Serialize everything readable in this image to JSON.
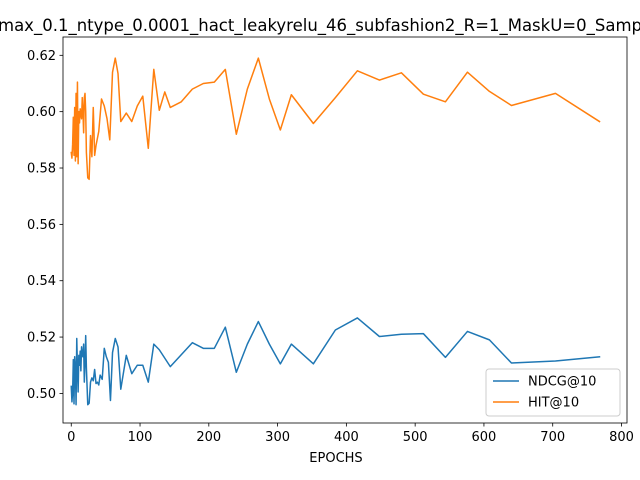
{
  "chart_data": {
    "type": "line",
    "title": "max_0.1_ntype_0.0001_hact_leakyrelu_46_subfashion2_R=1_MaskU=0_Samp",
    "xlabel": "EPOCHS",
    "ylabel": "",
    "xlim": [
      -12,
      808
    ],
    "ylim": [
      0.4895,
      0.6265
    ],
    "xticks": [
      0,
      100,
      200,
      300,
      400,
      500,
      600,
      700,
      800
    ],
    "yticks": [
      0.5,
      0.52,
      0.54,
      0.56,
      0.58,
      0.6,
      0.62
    ],
    "ytick_labels": [
      "0.50",
      "0.52",
      "0.54",
      "0.56",
      "0.58",
      "0.60",
      "0.62"
    ],
    "grid": false,
    "legend_position": "lower right",
    "series": [
      {
        "name": "NDCG@10",
        "color": "#1f77b4",
        "points": [
          [
            0,
            0.5025
          ],
          [
            1,
            0.497
          ],
          [
            2,
            0.5005
          ],
          [
            3,
            0.512
          ],
          [
            4,
            0.4963
          ],
          [
            5,
            0.513
          ],
          [
            6,
            0.509
          ],
          [
            7,
            0.496
          ],
          [
            8,
            0.5195
          ],
          [
            9,
            0.509
          ],
          [
            10,
            0.5005
          ],
          [
            11,
            0.5135
          ],
          [
            12,
            0.51
          ],
          [
            13,
            0.515
          ],
          [
            14,
            0.508
          ],
          [
            15,
            0.5165
          ],
          [
            16,
            0.5135
          ],
          [
            17,
            0.513
          ],
          [
            18,
            0.5175
          ],
          [
            19,
            0.504
          ],
          [
            20,
            0.511
          ],
          [
            21,
            0.5205
          ],
          [
            22,
            0.509
          ],
          [
            24,
            0.496
          ],
          [
            26,
            0.4965
          ],
          [
            28,
            0.504
          ],
          [
            30,
            0.5055
          ],
          [
            32,
            0.5045
          ],
          [
            34,
            0.5085
          ],
          [
            36,
            0.5035
          ],
          [
            38,
            0.504
          ],
          [
            40,
            0.503
          ],
          [
            42,
            0.5065
          ],
          [
            45,
            0.505
          ],
          [
            48,
            0.516
          ],
          [
            51,
            0.513
          ],
          [
            54,
            0.511
          ],
          [
            57,
            0.4975
          ],
          [
            60,
            0.5145
          ],
          [
            64,
            0.5195
          ],
          [
            68,
            0.5165
          ],
          [
            72,
            0.5015
          ],
          [
            80,
            0.5135
          ],
          [
            88,
            0.507
          ],
          [
            96,
            0.51
          ],
          [
            104,
            0.51
          ],
          [
            112,
            0.504
          ],
          [
            120,
            0.5175
          ],
          [
            128,
            0.5155
          ],
          [
            144,
            0.5095
          ],
          [
            176,
            0.518
          ],
          [
            192,
            0.516
          ],
          [
            208,
            0.516
          ],
          [
            224,
            0.5235
          ],
          [
            240,
            0.5075
          ],
          [
            256,
            0.5175
          ],
          [
            272,
            0.5255
          ],
          [
            288,
            0.5175
          ],
          [
            304,
            0.5105
          ],
          [
            320,
            0.5175
          ],
          [
            352,
            0.5105
          ],
          [
            384,
            0.5225
          ],
          [
            416,
            0.5268
          ],
          [
            448,
            0.5202
          ],
          [
            480,
            0.521
          ],
          [
            512,
            0.5212
          ],
          [
            544,
            0.5128
          ],
          [
            576,
            0.522
          ],
          [
            608,
            0.519
          ],
          [
            640,
            0.5108
          ],
          [
            704,
            0.5115
          ],
          [
            768,
            0.513
          ]
        ]
      },
      {
        "name": "HIT@10",
        "color": "#ff7f0e",
        "points": [
          [
            0,
            0.5855
          ],
          [
            1,
            0.5835
          ],
          [
            2,
            0.5885
          ],
          [
            3,
            0.598
          ],
          [
            4,
            0.5845
          ],
          [
            5,
            0.6015
          ],
          [
            6,
            0.5825
          ],
          [
            7,
            0.6065
          ],
          [
            8,
            0.584
          ],
          [
            9,
            0.6105
          ],
          [
            10,
            0.5815
          ],
          [
            11,
            0.6
          ],
          [
            12,
            0.596
          ],
          [
            13,
            0.601
          ],
          [
            14,
            0.599
          ],
          [
            15,
            0.5975
          ],
          [
            16,
            0.605
          ],
          [
            17,
            0.6
          ],
          [
            18,
            0.5925
          ],
          [
            19,
            0.605
          ],
          [
            20,
            0.6065
          ],
          [
            21,
            0.6
          ],
          [
            22,
            0.5855
          ],
          [
            24,
            0.5765
          ],
          [
            26,
            0.576
          ],
          [
            28,
            0.5915
          ],
          [
            30,
            0.584
          ],
          [
            32,
            0.6015
          ],
          [
            34,
            0.5845
          ],
          [
            36,
            0.588
          ],
          [
            40,
            0.593
          ],
          [
            44,
            0.6045
          ],
          [
            48,
            0.602
          ],
          [
            52,
            0.5975
          ],
          [
            56,
            0.59
          ],
          [
            60,
            0.614
          ],
          [
            64,
            0.619
          ],
          [
            68,
            0.6135
          ],
          [
            72,
            0.5965
          ],
          [
            80,
            0.5995
          ],
          [
            88,
            0.5965
          ],
          [
            96,
            0.602
          ],
          [
            104,
            0.6055
          ],
          [
            112,
            0.587
          ],
          [
            120,
            0.615
          ],
          [
            128,
            0.6005
          ],
          [
            136,
            0.607
          ],
          [
            144,
            0.6015
          ],
          [
            160,
            0.6035
          ],
          [
            176,
            0.608
          ],
          [
            192,
            0.61
          ],
          [
            208,
            0.6105
          ],
          [
            224,
            0.615
          ],
          [
            240,
            0.592
          ],
          [
            256,
            0.608
          ],
          [
            272,
            0.619
          ],
          [
            288,
            0.6045
          ],
          [
            304,
            0.5935
          ],
          [
            320,
            0.606
          ],
          [
            352,
            0.5958
          ],
          [
            384,
            0.605
          ],
          [
            416,
            0.6145
          ],
          [
            448,
            0.6112
          ],
          [
            480,
            0.6138
          ],
          [
            512,
            0.6062
          ],
          [
            544,
            0.6035
          ],
          [
            576,
            0.614
          ],
          [
            608,
            0.6072
          ],
          [
            640,
            0.6022
          ],
          [
            704,
            0.6065
          ],
          [
            768,
            0.5965
          ]
        ]
      }
    ]
  }
}
